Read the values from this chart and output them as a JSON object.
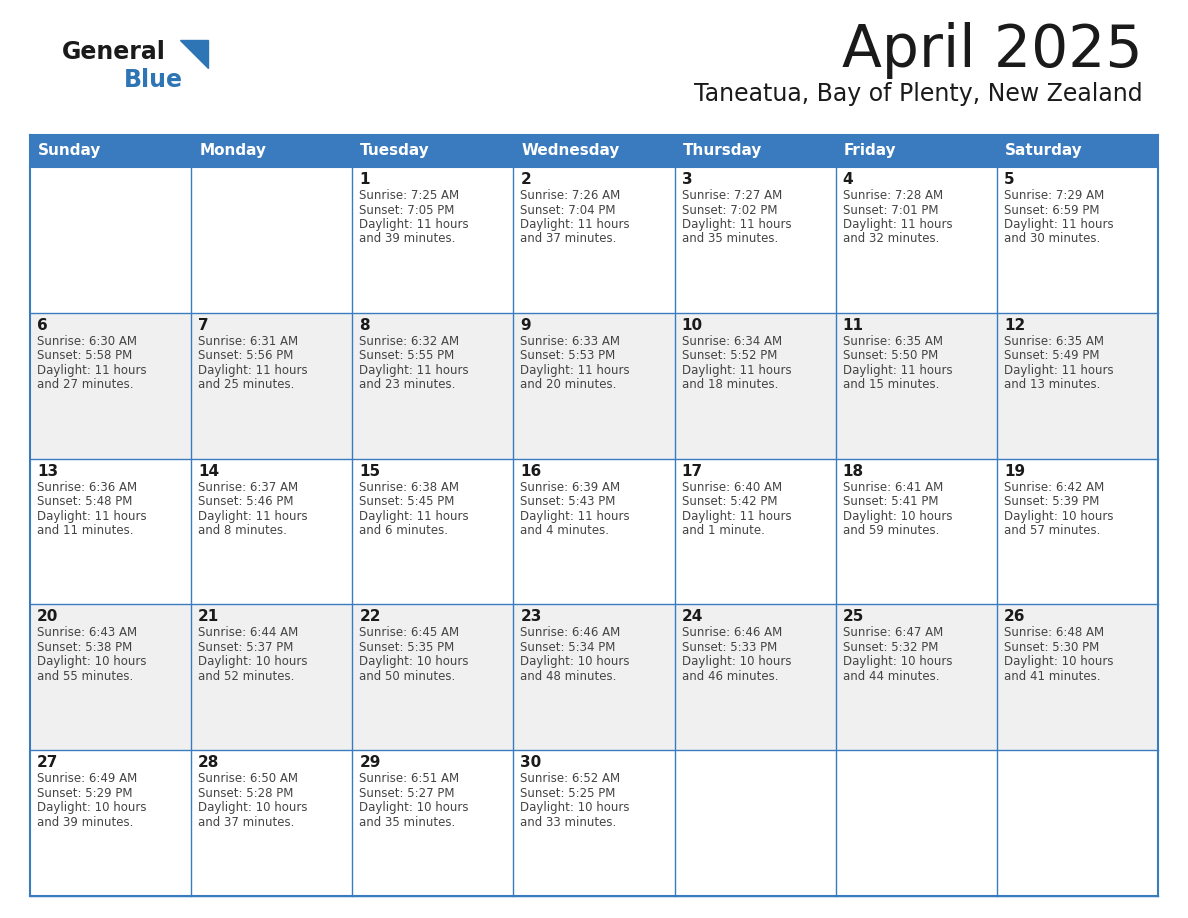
{
  "title": "April 2025",
  "subtitle": "Taneatua, Bay of Plenty, New Zealand",
  "days_of_week": [
    "Sunday",
    "Monday",
    "Tuesday",
    "Wednesday",
    "Thursday",
    "Friday",
    "Saturday"
  ],
  "header_bg": "#3a7bbf",
  "header_text": "#FFFFFF",
  "row_bg_white": "#FFFFFF",
  "row_bg_gray": "#F0F0F0",
  "cell_border_color": "#3a7bbf",
  "title_color": "#1a1a1a",
  "subtitle_color": "#1a1a1a",
  "day_num_color": "#1a1a1a",
  "text_color": "#444444",
  "logo_general_color": "#1a1a1a",
  "logo_blue_color": "#2E75B6",
  "logo_tri_color": "#2E75B6",
  "calendar_data": [
    [
      {
        "day": null,
        "info": null
      },
      {
        "day": null,
        "info": null
      },
      {
        "day": 1,
        "sunrise": "7:25 AM",
        "sunset": "7:05 PM",
        "daylight": "11 hours",
        "daylight2": "and 39 minutes."
      },
      {
        "day": 2,
        "sunrise": "7:26 AM",
        "sunset": "7:04 PM",
        "daylight": "11 hours",
        "daylight2": "and 37 minutes."
      },
      {
        "day": 3,
        "sunrise": "7:27 AM",
        "sunset": "7:02 PM",
        "daylight": "11 hours",
        "daylight2": "and 35 minutes."
      },
      {
        "day": 4,
        "sunrise": "7:28 AM",
        "sunset": "7:01 PM",
        "daylight": "11 hours",
        "daylight2": "and 32 minutes."
      },
      {
        "day": 5,
        "sunrise": "7:29 AM",
        "sunset": "6:59 PM",
        "daylight": "11 hours",
        "daylight2": "and 30 minutes."
      }
    ],
    [
      {
        "day": 6,
        "sunrise": "6:30 AM",
        "sunset": "5:58 PM",
        "daylight": "11 hours",
        "daylight2": "and 27 minutes."
      },
      {
        "day": 7,
        "sunrise": "6:31 AM",
        "sunset": "5:56 PM",
        "daylight": "11 hours",
        "daylight2": "and 25 minutes."
      },
      {
        "day": 8,
        "sunrise": "6:32 AM",
        "sunset": "5:55 PM",
        "daylight": "11 hours",
        "daylight2": "and 23 minutes."
      },
      {
        "day": 9,
        "sunrise": "6:33 AM",
        "sunset": "5:53 PM",
        "daylight": "11 hours",
        "daylight2": "and 20 minutes."
      },
      {
        "day": 10,
        "sunrise": "6:34 AM",
        "sunset": "5:52 PM",
        "daylight": "11 hours",
        "daylight2": "and 18 minutes."
      },
      {
        "day": 11,
        "sunrise": "6:35 AM",
        "sunset": "5:50 PM",
        "daylight": "11 hours",
        "daylight2": "and 15 minutes."
      },
      {
        "day": 12,
        "sunrise": "6:35 AM",
        "sunset": "5:49 PM",
        "daylight": "11 hours",
        "daylight2": "and 13 minutes."
      }
    ],
    [
      {
        "day": 13,
        "sunrise": "6:36 AM",
        "sunset": "5:48 PM",
        "daylight": "11 hours",
        "daylight2": "and 11 minutes."
      },
      {
        "day": 14,
        "sunrise": "6:37 AM",
        "sunset": "5:46 PM",
        "daylight": "11 hours",
        "daylight2": "and 8 minutes."
      },
      {
        "day": 15,
        "sunrise": "6:38 AM",
        "sunset": "5:45 PM",
        "daylight": "11 hours",
        "daylight2": "and 6 minutes."
      },
      {
        "day": 16,
        "sunrise": "6:39 AM",
        "sunset": "5:43 PM",
        "daylight": "11 hours",
        "daylight2": "and 4 minutes."
      },
      {
        "day": 17,
        "sunrise": "6:40 AM",
        "sunset": "5:42 PM",
        "daylight": "11 hours",
        "daylight2": "and 1 minute."
      },
      {
        "day": 18,
        "sunrise": "6:41 AM",
        "sunset": "5:41 PM",
        "daylight": "10 hours",
        "daylight2": "and 59 minutes."
      },
      {
        "day": 19,
        "sunrise": "6:42 AM",
        "sunset": "5:39 PM",
        "daylight": "10 hours",
        "daylight2": "and 57 minutes."
      }
    ],
    [
      {
        "day": 20,
        "sunrise": "6:43 AM",
        "sunset": "5:38 PM",
        "daylight": "10 hours",
        "daylight2": "and 55 minutes."
      },
      {
        "day": 21,
        "sunrise": "6:44 AM",
        "sunset": "5:37 PM",
        "daylight": "10 hours",
        "daylight2": "and 52 minutes."
      },
      {
        "day": 22,
        "sunrise": "6:45 AM",
        "sunset": "5:35 PM",
        "daylight": "10 hours",
        "daylight2": "and 50 minutes."
      },
      {
        "day": 23,
        "sunrise": "6:46 AM",
        "sunset": "5:34 PM",
        "daylight": "10 hours",
        "daylight2": "and 48 minutes."
      },
      {
        "day": 24,
        "sunrise": "6:46 AM",
        "sunset": "5:33 PM",
        "daylight": "10 hours",
        "daylight2": "and 46 minutes."
      },
      {
        "day": 25,
        "sunrise": "6:47 AM",
        "sunset": "5:32 PM",
        "daylight": "10 hours",
        "daylight2": "and 44 minutes."
      },
      {
        "day": 26,
        "sunrise": "6:48 AM",
        "sunset": "5:30 PM",
        "daylight": "10 hours",
        "daylight2": "and 41 minutes."
      }
    ],
    [
      {
        "day": 27,
        "sunrise": "6:49 AM",
        "sunset": "5:29 PM",
        "daylight": "10 hours",
        "daylight2": "and 39 minutes."
      },
      {
        "day": 28,
        "sunrise": "6:50 AM",
        "sunset": "5:28 PM",
        "daylight": "10 hours",
        "daylight2": "and 37 minutes."
      },
      {
        "day": 29,
        "sunrise": "6:51 AM",
        "sunset": "5:27 PM",
        "daylight": "10 hours",
        "daylight2": "and 35 minutes."
      },
      {
        "day": 30,
        "sunrise": "6:52 AM",
        "sunset": "5:25 PM",
        "daylight": "10 hours",
        "daylight2": "and 33 minutes."
      },
      {
        "day": null,
        "sunrise": null,
        "sunset": null,
        "daylight": null,
        "daylight2": null
      },
      {
        "day": null,
        "sunrise": null,
        "sunset": null,
        "daylight": null,
        "daylight2": null
      },
      {
        "day": null,
        "sunrise": null,
        "sunset": null,
        "daylight": null,
        "daylight2": null
      }
    ]
  ]
}
